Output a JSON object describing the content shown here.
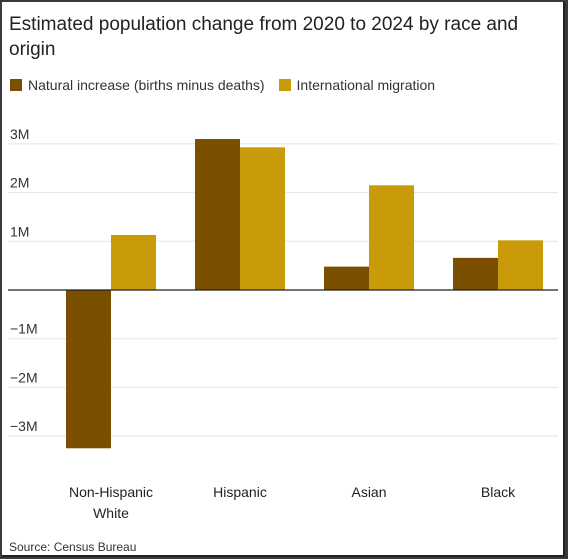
{
  "chart_data": {
    "type": "bar",
    "title": "Estimated population change from 2020 to 2024 by race and origin",
    "categories": [
      "Non-Hispanic White",
      "Hispanic",
      "Asian",
      "Black"
    ],
    "series": [
      {
        "name": "Natural increase (births minus deaths)",
        "values": [
          -3.25,
          3.1,
          0.48,
          0.66
        ],
        "color": "#7a4f00"
      },
      {
        "name": "International migration",
        "values": [
          1.13,
          2.93,
          2.15,
          1.02
        ],
        "color": "#c99a0a"
      }
    ],
    "yticks": [
      3,
      2,
      1,
      0,
      -1,
      -2,
      -3
    ],
    "ytick_labels": [
      "3M",
      "2M",
      "1M",
      "",
      "−1M",
      "−2M",
      "−3M"
    ],
    "ylim": [
      -3.5,
      3.2
    ],
    "grid": true,
    "legend_position": "top-left"
  },
  "source": "Source: Census Bureau"
}
